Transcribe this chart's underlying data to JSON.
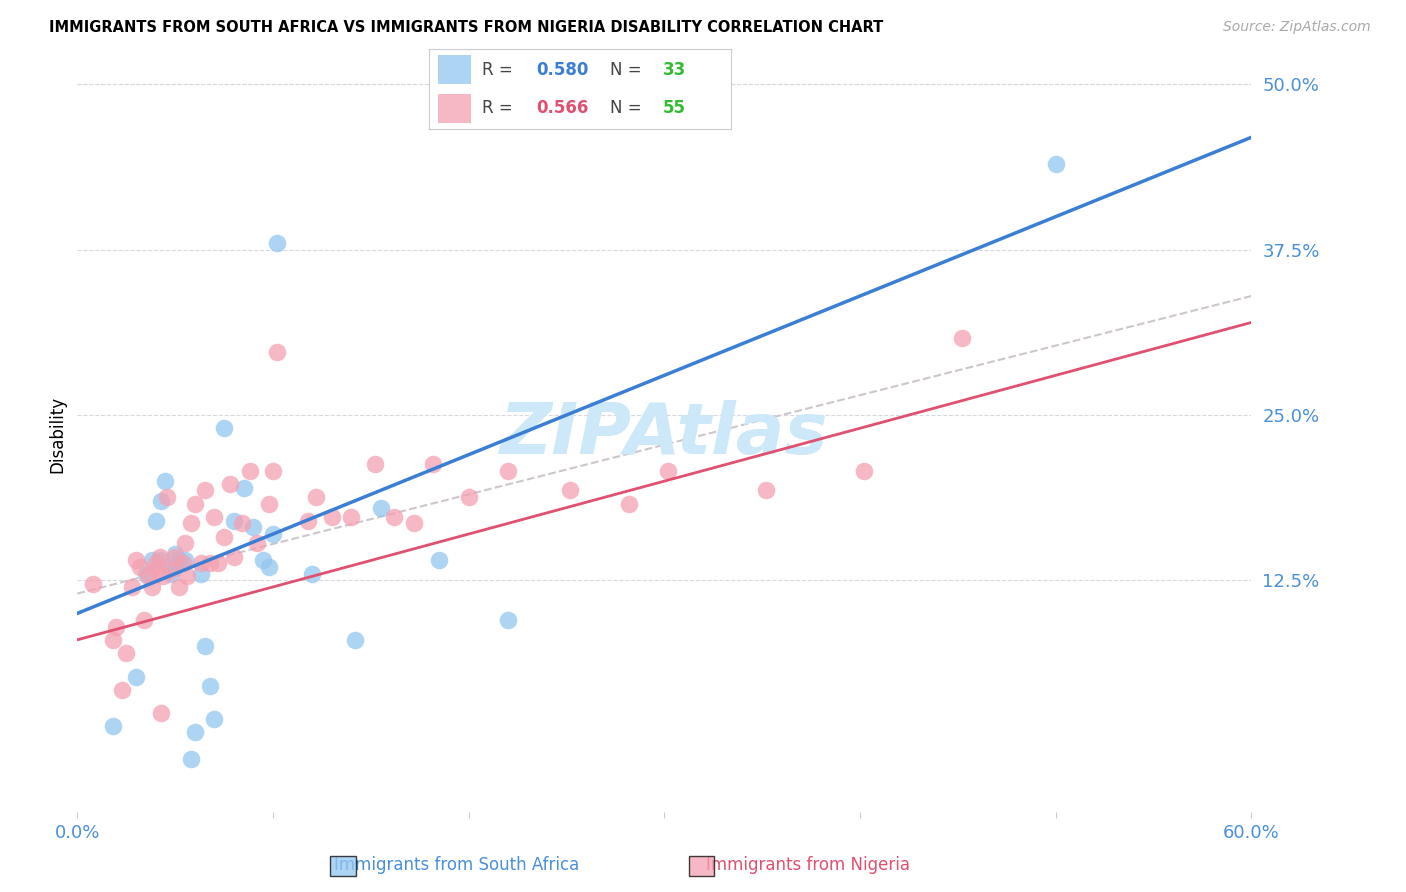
{
  "title": "IMMIGRANTS FROM SOUTH AFRICA VS IMMIGRANTS FROM NIGERIA DISABILITY CORRELATION CHART",
  "source": "Source: ZipAtlas.com",
  "ylabel": "Disability",
  "xlim": [
    0.0,
    0.6
  ],
  "ylim": [
    -0.05,
    0.52
  ],
  "plot_ylim": [
    -0.05,
    0.52
  ],
  "yticks_right": [
    0.125,
    0.25,
    0.375,
    0.5
  ],
  "ytick_labels_right": [
    "12.5%",
    "25.0%",
    "37.5%",
    "50.0%"
  ],
  "xticks": [
    0.0,
    0.1,
    0.2,
    0.3,
    0.4,
    0.5,
    0.6
  ],
  "xtick_labels": [
    "0.0%",
    "",
    "",
    "",
    "",
    "",
    "60.0%"
  ],
  "color_blue": "#93c6f0",
  "color_pink": "#f4a0b0",
  "color_blue_line": "#3a7fd5",
  "color_pink_line": "#e05070",
  "color_dashed": "#c8c0c8",
  "color_axis_labels": "#4a90d9",
  "color_green_legend": "#33bb33",
  "watermark": "ZIPAtlas",
  "watermark_color": "#cde8f8",
  "background_color": "#ffffff",
  "grid_color": "#d8d8e0",
  "sa_x": [
    0.018,
    0.03,
    0.035,
    0.038,
    0.04,
    0.042,
    0.043,
    0.045,
    0.048,
    0.05,
    0.05,
    0.052,
    0.055,
    0.058,
    0.06,
    0.063,
    0.065,
    0.068,
    0.07,
    0.075,
    0.08,
    0.085,
    0.09,
    0.095,
    0.098,
    0.1,
    0.102,
    0.12,
    0.142,
    0.155,
    0.185,
    0.22,
    0.5
  ],
  "sa_y": [
    0.015,
    0.052,
    0.13,
    0.14,
    0.17,
    0.14,
    0.185,
    0.2,
    0.13,
    0.135,
    0.145,
    0.14,
    0.14,
    -0.01,
    0.01,
    0.13,
    0.075,
    0.045,
    0.02,
    0.24,
    0.17,
    0.195,
    0.165,
    0.14,
    0.135,
    0.16,
    0.38,
    0.13,
    0.08,
    0.18,
    0.14,
    0.095,
    0.44
  ],
  "ng_x": [
    0.008,
    0.018,
    0.02,
    0.023,
    0.025,
    0.028,
    0.03,
    0.032,
    0.034,
    0.036,
    0.038,
    0.04,
    0.04,
    0.042,
    0.043,
    0.044,
    0.046,
    0.048,
    0.05,
    0.052,
    0.054,
    0.055,
    0.056,
    0.058,
    0.06,
    0.063,
    0.065,
    0.068,
    0.07,
    0.072,
    0.075,
    0.078,
    0.08,
    0.084,
    0.088,
    0.092,
    0.098,
    0.1,
    0.102,
    0.118,
    0.122,
    0.13,
    0.14,
    0.152,
    0.162,
    0.172,
    0.182,
    0.2,
    0.22,
    0.252,
    0.282,
    0.302,
    0.352,
    0.402,
    0.452
  ],
  "ng_y": [
    0.122,
    0.08,
    0.09,
    0.042,
    0.07,
    0.12,
    0.14,
    0.135,
    0.095,
    0.128,
    0.12,
    0.133,
    0.138,
    0.143,
    0.025,
    0.128,
    0.188,
    0.133,
    0.143,
    0.12,
    0.138,
    0.153,
    0.128,
    0.168,
    0.183,
    0.138,
    0.193,
    0.138,
    0.173,
    0.138,
    0.158,
    0.198,
    0.143,
    0.168,
    0.208,
    0.153,
    0.183,
    0.208,
    0.298,
    0.17,
    0.188,
    0.173,
    0.173,
    0.213,
    0.173,
    0.168,
    0.213,
    0.188,
    0.208,
    0.193,
    0.183,
    0.208,
    0.193,
    0.208,
    0.308
  ],
  "blue_line_x0": 0.0,
  "blue_line_y0": 0.1,
  "blue_line_x1": 0.6,
  "blue_line_y1": 0.46,
  "pink_line_x0": 0.0,
  "pink_line_y0": 0.08,
  "pink_line_x1": 0.6,
  "pink_line_y1": 0.32,
  "dash_line_x0": 0.0,
  "dash_line_y0": 0.115,
  "dash_line_x1": 0.6,
  "dash_line_y1": 0.34
}
